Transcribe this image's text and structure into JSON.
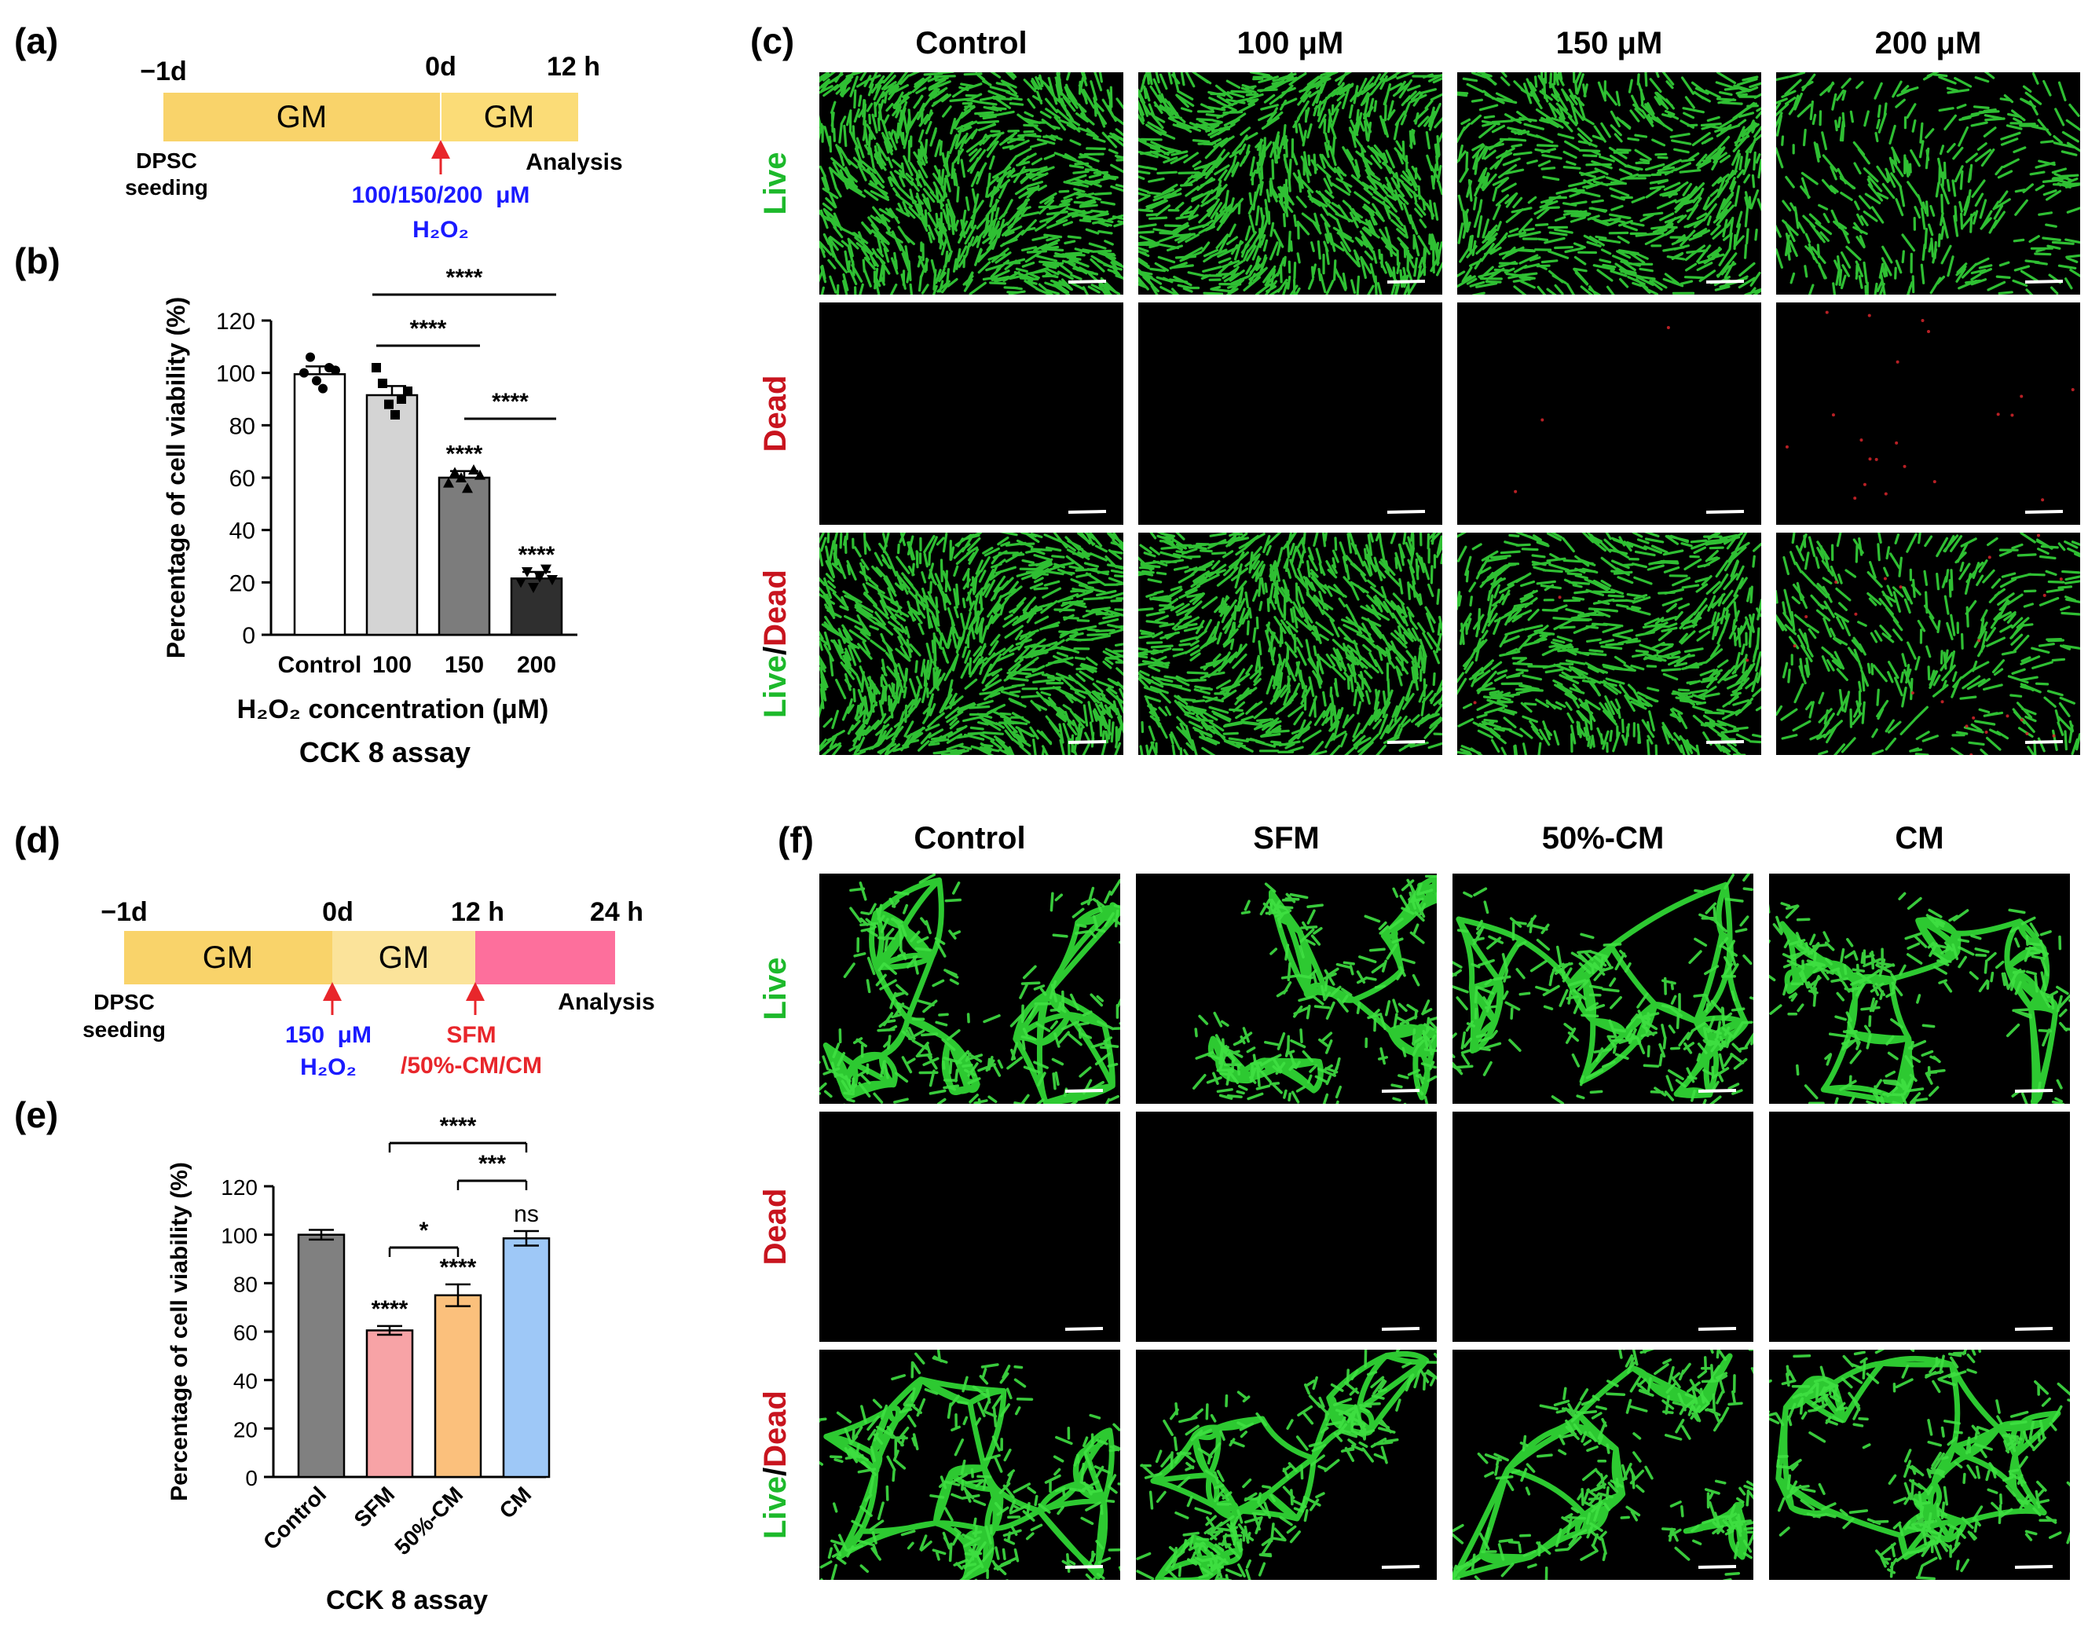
{
  "panel_labels": {
    "a": "(a)",
    "b": "(b)",
    "c": "(c)",
    "d": "(d)",
    "e": "(e)",
    "f": "(f)"
  },
  "colors": {
    "gm": "#f9d36a",
    "gm_light": "#fbe39a",
    "treatment": "#fd6f9c",
    "arrow": "#e8262b",
    "blue": "#1a1aff",
    "red": "#e8262b",
    "green": "#1db92b",
    "dead_red": "#c8141e",
    "cell": "#36d43a",
    "micro_bg": "#000000"
  },
  "timeline_a": {
    "ticks": [
      "−1d",
      "0d",
      "12 h"
    ],
    "segments": [
      "GM",
      "GM"
    ],
    "seeding": [
      "DPSC",
      "seeding"
    ],
    "analysis": "Analysis",
    "treatment_top": "100/150/200  μM",
    "treatment_chem": "H₂O₂"
  },
  "timeline_d": {
    "ticks": [
      "−1d",
      "0d",
      "12 h",
      "24 h"
    ],
    "segments": [
      "GM",
      "GM"
    ],
    "seeding": [
      "DPSC",
      "seeding"
    ],
    "analysis": "Analysis",
    "treat1_top": "150  μM",
    "treat1_chem": "H₂O₂",
    "treat2_top": "SFM",
    "treat2_bottom": "/50%-CM/CM"
  },
  "chart_data": [
    {
      "panel": "b",
      "type": "bar",
      "categories": [
        "Control",
        "100",
        "150",
        "200"
      ],
      "values": [
        99.5,
        91.5,
        60.0,
        21.5
      ],
      "errors": [
        3.0,
        3.5,
        2.5,
        2.5
      ],
      "points": [
        [
          100,
          106,
          97,
          94,
          102,
          101
        ],
        [
          102,
          96,
          88,
          84,
          90,
          93
        ],
        [
          58,
          62,
          60,
          56,
          63,
          61
        ],
        [
          20,
          24,
          18,
          22,
          25,
          21
        ]
      ],
      "significance_bars": [
        {
          "from": 1,
          "to": 3,
          "label": "****"
        },
        {
          "from": 1,
          "to": 2,
          "label": "****"
        },
        {
          "from": 2,
          "to": 3,
          "label": "****"
        }
      ],
      "bar_annotations": [
        "",
        "",
        "****",
        "****"
      ],
      "bar_colors": [
        "#ffffff",
        "#d4d4d4",
        "#7c7c7c",
        "#2f2f2f"
      ],
      "xlabel": "H₂O₂ concentration (μM)",
      "ylabel": "Percentage of cell viability (%)",
      "ylim": [
        0,
        120
      ],
      "yticks": [
        0,
        20,
        40,
        60,
        80,
        100,
        120
      ],
      "caption": "CCK 8 assay"
    },
    {
      "panel": "e",
      "type": "bar",
      "categories": [
        "Control",
        "SFM",
        "50%-CM",
        "CM"
      ],
      "values": [
        100.0,
        60.5,
        75.0,
        98.5
      ],
      "errors": [
        2.0,
        1.8,
        4.5,
        3.0
      ],
      "significance_bars": [
        {
          "from": 1,
          "to": 3,
          "label": "****"
        },
        {
          "from": 2,
          "to": 3,
          "label": "***"
        },
        {
          "from": 1,
          "to": 2,
          "label": "*"
        }
      ],
      "bar_annotations": [
        "",
        "****",
        "****",
        "ns"
      ],
      "bar_colors": [
        "#808080",
        "#f7a3a6",
        "#fbc07c",
        "#9ec8f7"
      ],
      "xlabel": "",
      "ylabel": "Percentage of cell viability (%)",
      "ylim": [
        0,
        120
      ],
      "yticks": [
        0,
        20,
        40,
        60,
        80,
        100,
        120
      ],
      "caption": "CCK 8 assay"
    }
  ],
  "micro_c": {
    "columns": [
      "Control",
      "100 μM",
      "150 μM",
      "200 μM"
    ],
    "density": [
      1.0,
      0.92,
      0.72,
      0.4
    ],
    "red_density": [
      0.0,
      0.0,
      0.05,
      0.35
    ]
  },
  "micro_f": {
    "columns": [
      "Control",
      "SFM",
      "50%-CM",
      "CM"
    ],
    "density": [
      1.0,
      0.95,
      0.9,
      1.0
    ],
    "red_density": [
      0.0,
      0.0,
      0.0,
      0.0
    ]
  },
  "row_labels": {
    "live": "Live",
    "dead": "Dead",
    "merged_live": "Live",
    "merged_slash": "/",
    "merged_dead": "Dead"
  }
}
